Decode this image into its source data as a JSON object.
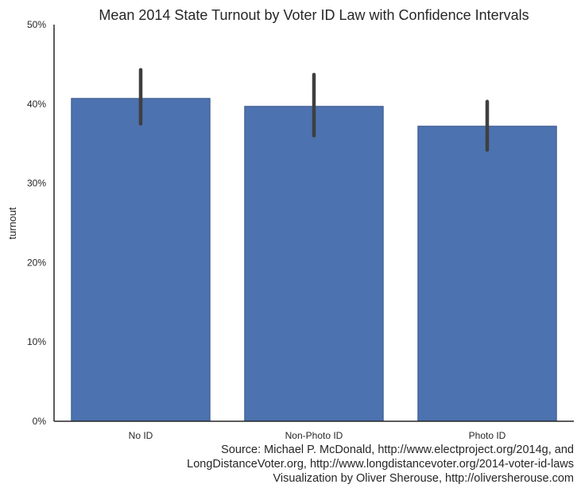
{
  "chart_data": {
    "type": "bar",
    "title": "Mean 2014 State Turnout by Voter ID Law with Confidence Intervals",
    "xlabel": "",
    "ylabel": "turnout",
    "categories": [
      "No ID",
      "Non-Photo ID",
      "Photo ID"
    ],
    "values": [
      0.407,
      0.397,
      0.372
    ],
    "error_bars": [
      {
        "low": 0.375,
        "high": 0.443
      },
      {
        "low": 0.36,
        "high": 0.437
      },
      {
        "low": 0.342,
        "high": 0.403
      }
    ],
    "ylim": [
      0,
      0.5
    ],
    "yticks": [
      0,
      0.1,
      0.2,
      0.3,
      0.4,
      0.5
    ],
    "ytick_labels": [
      "0%",
      "10%",
      "20%",
      "30%",
      "40%",
      "50%"
    ],
    "grid": false,
    "legend": "none",
    "bar_color": "#4c72b0",
    "bar_edge_color": "#3a568a",
    "error_color": "#3f3f3f",
    "axis_color": "#262626",
    "source_lines": [
      "Source: Michael P. McDonald, http://www.electproject.org/2014g, and",
      "LongDistanceVoter.org, http://www.longdistancevoter.org/2014-voter-id-laws",
      "Visualization by Oliver Sherouse, http://oliversherouse.com"
    ]
  }
}
